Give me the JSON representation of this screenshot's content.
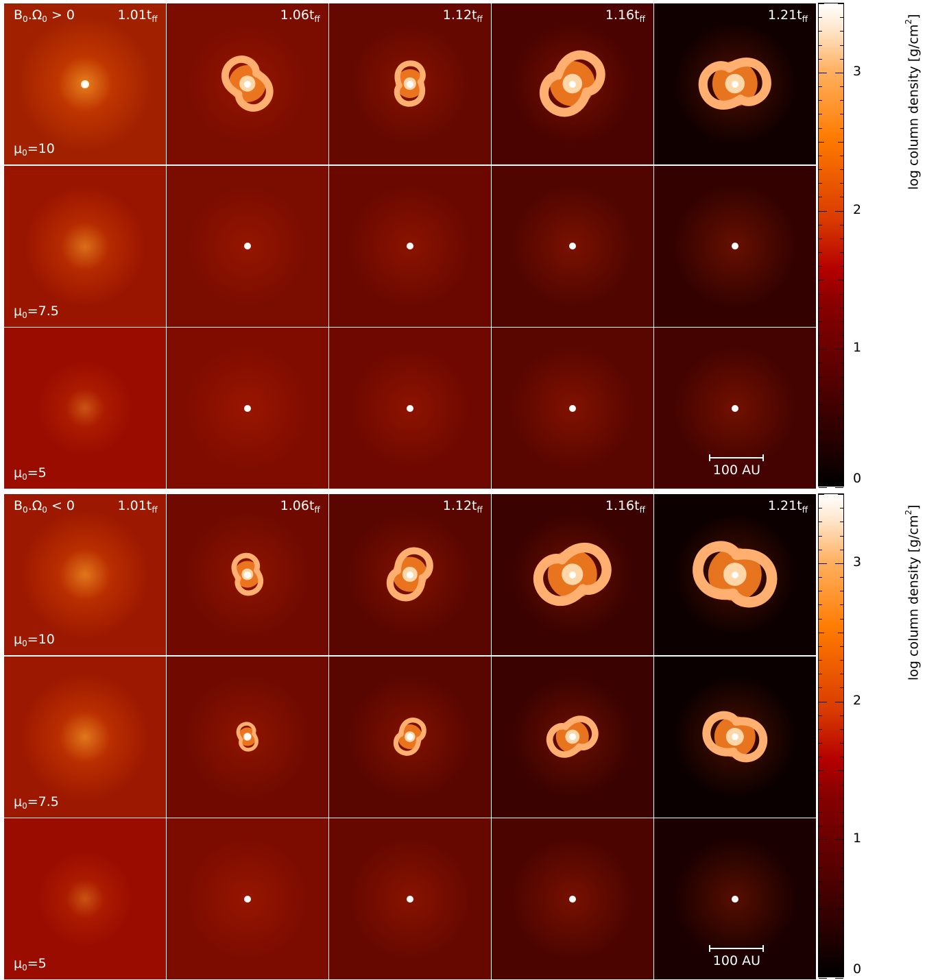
{
  "colorbar": {
    "label": "log column density [g/cm",
    "label_sup": "2",
    "label_end": "]",
    "ticks": [
      "0",
      "1",
      "2",
      "3"
    ]
  },
  "times": [
    {
      "main": "1.01t",
      "sub": "ff"
    },
    {
      "main": "1.06t",
      "sub": "ff"
    },
    {
      "main": "1.12t",
      "sub": "ff"
    },
    {
      "main": "1.16t",
      "sub": "ff"
    },
    {
      "main": "1.21t",
      "sub": "ff"
    }
  ],
  "mu_prefix": "μ",
  "mu_sub": "0",
  "mu_values": [
    "=10",
    "=7.5",
    "=5"
  ],
  "scale_bar": "100 AU",
  "blocks": [
    {
      "case": {
        "b": "B",
        "b_sub": "0",
        "dot": ".Ω",
        "o_sub": "0",
        "rel": " > 0"
      },
      "rows": [
        {
          "bg": [
            "#a02000",
            "#7a0c00",
            "#640800",
            "#4a0300",
            "#100000"
          ],
          "halo": [
            1.0,
            0.0,
            0.0,
            0.0,
            0.0
          ],
          "disc": [
            0,
            0.9,
            0.7,
            1.1,
            1.1
          ]
        },
        {
          "bg": [
            "#9a1500",
            "#7a0c00",
            "#6a0800",
            "#500500",
            "#330200"
          ],
          "halo": [
            0.8,
            0.0,
            0.0,
            0.0,
            0.0
          ],
          "disc": [
            0,
            0,
            0,
            0,
            0
          ]
        },
        {
          "bg": [
            "#9a0c00",
            "#800c00",
            "#6e0800",
            "#5a0600",
            "#440300"
          ],
          "halo": [
            0.5,
            0.0,
            0.0,
            0.0,
            0.0
          ],
          "disc": [
            0,
            0,
            0,
            0,
            0
          ]
        }
      ]
    },
    {
      "case": {
        "b": "B",
        "b_sub": "0",
        "dot": ".Ω",
        "o_sub": "0",
        "rel": " < 0"
      },
      "rows": [
        {
          "bg": [
            "#9c1800",
            "#700a00",
            "#5a0600",
            "#3a0200",
            "#0c0000"
          ],
          "halo": [
            0.9,
            0.0,
            0.0,
            0.0,
            0.0
          ],
          "disc": [
            0,
            0.65,
            0.85,
            1.2,
            1.3
          ]
        },
        {
          "bg": [
            "#9c1800",
            "#700a00",
            "#5a0600",
            "#3a0200",
            "#0a0000"
          ],
          "halo": [
            0.9,
            0.0,
            0.0,
            0.0,
            0.0
          ],
          "disc": [
            0,
            0.45,
            0.6,
            0.8,
            1.0
          ]
        },
        {
          "bg": [
            "#9a0c00",
            "#7c0c00",
            "#660800",
            "#4c0400",
            "#1a0000"
          ],
          "halo": [
            0.5,
            0.0,
            0.0,
            0.0,
            0.0
          ],
          "disc": [
            0,
            0,
            0,
            0,
            0
          ]
        }
      ]
    }
  ]
}
